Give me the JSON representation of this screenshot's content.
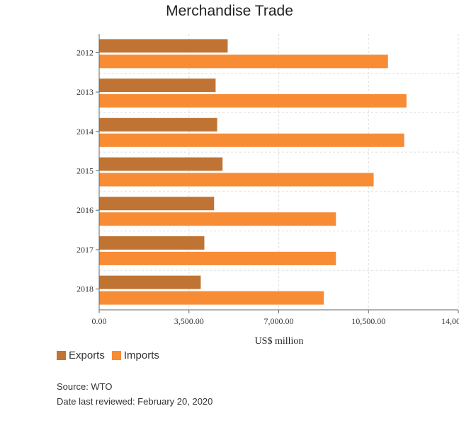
{
  "chart_data": {
    "type": "bar",
    "orientation": "horizontal",
    "title": "Merchandise Trade",
    "xlabel": "US$ million",
    "ylabel": "",
    "categories": [
      "2012",
      "2013",
      "2014",
      "2015",
      "2016",
      "2017",
      "2018"
    ],
    "series": [
      {
        "name": "Exports",
        "color": "#c07433",
        "values": [
          5010,
          4540,
          4600,
          4810,
          4480,
          4100,
          3960
        ]
      },
      {
        "name": "Imports",
        "color": "#f78c35",
        "values": [
          11260,
          11980,
          11890,
          10700,
          9230,
          9230,
          8760
        ]
      }
    ],
    "xlim": [
      0,
      14000
    ],
    "xticks": [
      "0.00",
      "3,500.00",
      "7,000.00",
      "10,500.00",
      "14,000.00"
    ],
    "grid": true,
    "legend_position": "bottom-left"
  },
  "footer": {
    "source": "Source: WTO",
    "reviewed": "Date last reviewed: February 20, 2020"
  }
}
